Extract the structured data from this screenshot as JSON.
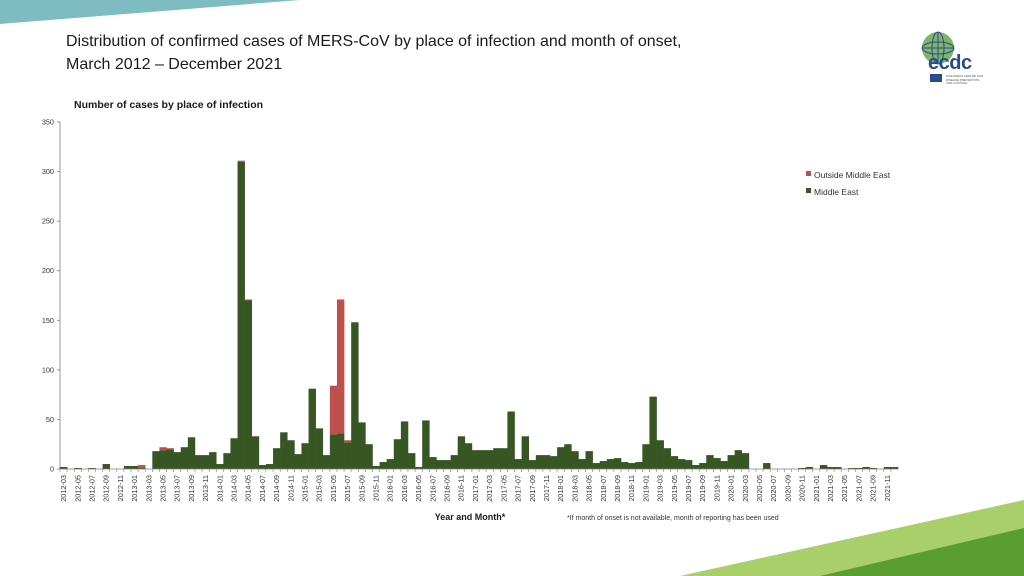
{
  "slide": {
    "title_line1": "Distribution of confirmed cases of MERS-CoV by place of infection and month of onset,",
    "title_line2": "March 2012 – December 2021",
    "logo_text": "ecdc",
    "logo_subtext": "EUROPEAN CENTRE FOR DISEASE PREVENTION AND CONTROL"
  },
  "colors": {
    "middle_east": "#375623",
    "outside_middle_east": "#c0504d",
    "axis": "#7f7f7f",
    "top_stripe": "#7fbcc1",
    "bottom_stripe_light": "#a9cf6a",
    "bottom_stripe_dark": "#5a9e2f"
  },
  "chart_data": {
    "type": "bar",
    "stacked": true,
    "title": "Number of cases by place of infection",
    "xlabel": "Year and Month*",
    "ylabel": "",
    "note": "*If month of onset is not available, month of reporting has been used",
    "ylim": [
      0,
      350
    ],
    "yticks": [
      0,
      50,
      100,
      150,
      200,
      250,
      300,
      350
    ],
    "grid": false,
    "legend_position": "right",
    "tick_labels_every": 2,
    "categories": [
      "2012-03",
      "2012-04",
      "2012-05",
      "2012-06",
      "2012-07",
      "2012-08",
      "2012-09",
      "2012-10",
      "2012-11",
      "2012-12",
      "2013-01",
      "2013-02",
      "2013-03",
      "2013-04",
      "2013-05",
      "2013-06",
      "2013-07",
      "2013-08",
      "2013-09",
      "2013-10",
      "2013-11",
      "2013-12",
      "2014-01",
      "2014-02",
      "2014-03",
      "2014-04",
      "2014-05",
      "2014-06",
      "2014-07",
      "2014-08",
      "2014-09",
      "2014-10",
      "2014-11",
      "2014-12",
      "2015-01",
      "2015-02",
      "2015-03",
      "2015-04",
      "2015-05",
      "2015-06",
      "2015-07",
      "2015-08",
      "2015-09",
      "2015-10",
      "2015-11",
      "2015-12",
      "2016-01",
      "2016-02",
      "2016-03",
      "2016-04",
      "2016-05",
      "2016-06",
      "2016-07",
      "2016-08",
      "2016-09",
      "2016-10",
      "2016-11",
      "2016-12",
      "2017-01",
      "2017-02",
      "2017-03",
      "2017-04",
      "2017-05",
      "2017-06",
      "2017-07",
      "2017-08",
      "2017-09",
      "2017-10",
      "2017-11",
      "2017-12",
      "2018-01",
      "2018-02",
      "2018-03",
      "2018-04",
      "2018-05",
      "2018-06",
      "2018-07",
      "2018-08",
      "2018-09",
      "2018-10",
      "2018-11",
      "2018-12",
      "2019-01",
      "2019-02",
      "2019-03",
      "2019-04",
      "2019-05",
      "2019-06",
      "2019-07",
      "2019-08",
      "2019-09",
      "2019-10",
      "2019-11",
      "2019-12",
      "2020-01",
      "2020-02",
      "2020-03",
      "2020-04",
      "2020-05",
      "2020-06",
      "2020-07",
      "2020-08",
      "2020-09",
      "2020-10",
      "2020-11",
      "2020-12",
      "2021-01",
      "2021-02",
      "2021-03",
      "2021-04",
      "2021-05",
      "2021-06",
      "2021-07",
      "2021-08",
      "2021-09",
      "2021-10",
      "2021-11",
      "2021-12"
    ],
    "series": [
      {
        "name": "Middle East",
        "values": [
          2,
          0,
          1,
          0,
          1,
          0,
          5,
          0,
          0,
          3,
          3,
          1,
          0,
          18,
          19,
          20,
          17,
          22,
          32,
          14,
          14,
          17,
          5,
          16,
          31,
          310,
          170,
          33,
          4,
          5,
          21,
          37,
          29,
          15,
          26,
          81,
          41,
          14,
          35,
          36,
          27,
          148,
          47,
          25,
          3,
          7,
          10,
          30,
          48,
          16,
          2,
          49,
          12,
          9,
          9,
          14,
          33,
          26,
          19,
          19,
          19,
          21,
          21,
          58,
          10,
          33,
          9,
          14,
          14,
          13,
          22,
          25,
          18,
          10,
          18,
          6,
          8,
          10,
          11,
          7,
          6,
          7,
          25,
          73,
          29,
          21,
          13,
          10,
          9,
          4,
          6,
          14,
          11,
          8,
          14,
          19,
          16,
          0,
          0,
          6,
          0,
          0,
          0,
          0,
          1,
          2,
          0,
          4,
          2,
          2,
          0,
          1,
          1,
          2,
          1,
          0,
          2,
          2
        ]
      },
      {
        "name": "Outside Middle East",
        "values": [
          0,
          0,
          0,
          0,
          0,
          0,
          0,
          0,
          0,
          0,
          0,
          3,
          0,
          0,
          3,
          1,
          0,
          0,
          0,
          0,
          0,
          0,
          0,
          0,
          0,
          1,
          1,
          0,
          0,
          0,
          0,
          0,
          0,
          0,
          0,
          0,
          0,
          0,
          49,
          135,
          2,
          0,
          0,
          0,
          0,
          0,
          0,
          0,
          0,
          0,
          0,
          0,
          0,
          0,
          0,
          0,
          0,
          0,
          0,
          0,
          0,
          0,
          0,
          0,
          0,
          0,
          0,
          0,
          0,
          0,
          0,
          0,
          0,
          0,
          0,
          0,
          0,
          0,
          0,
          0,
          0,
          0,
          0,
          0,
          0,
          0,
          0,
          0,
          0,
          0,
          0,
          0,
          0,
          0,
          0,
          0,
          0,
          0,
          0,
          0,
          0,
          0,
          0,
          0,
          0,
          0,
          0,
          0,
          0,
          0,
          0,
          0,
          0,
          0,
          0,
          0,
          0,
          0
        ]
      }
    ]
  }
}
